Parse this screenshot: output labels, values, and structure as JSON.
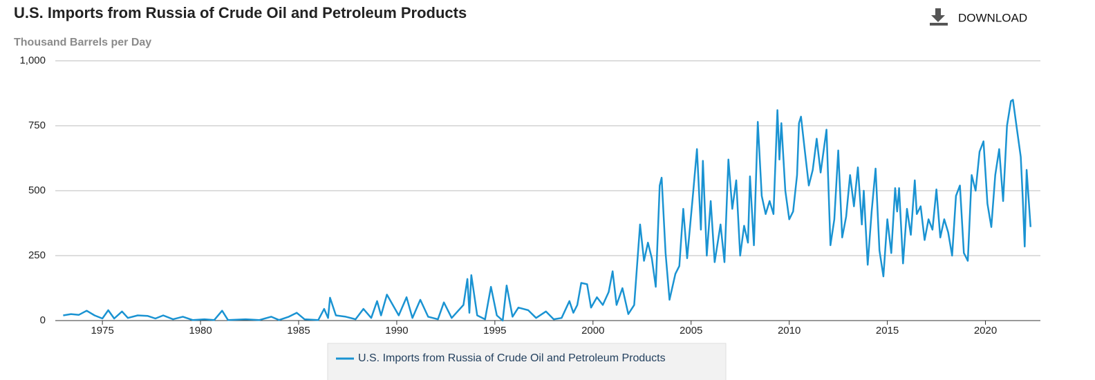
{
  "toolbar": {
    "download": "DOWNLOAD"
  },
  "chart_data": {
    "type": "line",
    "title": "U.S. Imports from Russia of Crude Oil and Petroleum Products",
    "y_label": "Thousand Barrels per Day",
    "xlim": [
      1972.6,
      2022.8
    ],
    "xticks": [
      1975,
      1980,
      1985,
      1990,
      1995,
      2000,
      2005,
      2010,
      2015,
      2020
    ],
    "ylim": [
      0,
      1000
    ],
    "yticks": [
      0,
      250,
      500,
      750,
      {
        "value": 1000,
        "label": "1,000"
      }
    ],
    "grid": true,
    "legend": "bottom",
    "x": [
      1973.0,
      1973.4,
      1973.8,
      1974.2,
      1974.6,
      1975.0,
      1975.3,
      1975.6,
      1976.0,
      1976.3,
      1976.8,
      1977.3,
      1977.7,
      1978.1,
      1978.6,
      1979.1,
      1979.6,
      1980.2,
      1980.7,
      1981.1,
      1981.4,
      1982.3,
      1983.0,
      1983.6,
      1984.0,
      1984.5,
      1984.9,
      1985.3,
      1986.0,
      1986.3,
      1986.5,
      1986.6,
      1986.9,
      1987.4,
      1987.9,
      1988.3,
      1988.7,
      1989.0,
      1989.2,
      1989.5,
      1989.8,
      1990.1,
      1990.5,
      1990.8,
      1991.2,
      1991.6,
      1992.1,
      1992.4,
      1992.8,
      1993.4,
      1993.6,
      1993.7,
      1993.8,
      1994.1,
      1994.5,
      1994.8,
      1995.1,
      1995.4,
      1995.6,
      1995.9,
      1996.2,
      1996.7,
      1997.1,
      1997.6,
      1998.0,
      1998.4,
      1998.8,
      1999.0,
      1999.2,
      1999.4,
      1999.7,
      1999.9,
      2000.2,
      2000.5,
      2000.8,
      2001.0,
      2001.2,
      2001.5,
      2001.8,
      2002.1,
      2002.4,
      2002.6,
      2002.8,
      2003.0,
      2003.2,
      2003.4,
      2003.5,
      2003.7,
      2003.9,
      2004.2,
      2004.4,
      2004.6,
      2004.8,
      2005.1,
      2005.3,
      2005.5,
      2005.6,
      2005.8,
      2006.0,
      2006.2,
      2006.5,
      2006.7,
      2006.9,
      2007.1,
      2007.3,
      2007.5,
      2007.7,
      2007.9,
      2008.0,
      2008.2,
      2008.4,
      2008.6,
      2008.8,
      2009.0,
      2009.2,
      2009.4,
      2009.5,
      2009.6,
      2009.8,
      2010.0,
      2010.2,
      2010.4,
      2010.5,
      2010.6,
      2010.8,
      2011.0,
      2011.2,
      2011.4,
      2011.6,
      2011.9,
      2012.1,
      2012.3,
      2012.5,
      2012.7,
      2012.9,
      2013.1,
      2013.3,
      2013.5,
      2013.7,
      2013.8,
      2014.0,
      2014.2,
      2014.4,
      2014.6,
      2014.8,
      2015.0,
      2015.2,
      2015.4,
      2015.5,
      2015.6,
      2015.8,
      2016.0,
      2016.2,
      2016.4,
      2016.5,
      2016.7,
      2016.9,
      2017.1,
      2017.3,
      2017.5,
      2017.7,
      2017.9,
      2018.1,
      2018.3,
      2018.5,
      2018.7,
      2018.9,
      2019.1,
      2019.3,
      2019.5,
      2019.7,
      2019.9,
      2020.1,
      2020.3,
      2020.5,
      2020.7,
      2020.9,
      2021.1,
      2021.3,
      2021.4,
      2021.6,
      2021.8,
      2021.9,
      2022.0,
      2022.1,
      2022.3
    ],
    "series": [
      {
        "name": "U.S. Imports from Russia of Crude Oil and Petroleum Products",
        "color": "#1a93d2",
        "values": [
          20,
          25,
          22,
          38,
          20,
          8,
          40,
          8,
          35,
          10,
          20,
          18,
          8,
          20,
          5,
          15,
          2,
          5,
          2,
          38,
          2,
          5,
          2,
          15,
          2,
          15,
          30,
          5,
          2,
          45,
          10,
          88,
          20,
          15,
          5,
          45,
          10,
          75,
          20,
          100,
          60,
          20,
          90,
          10,
          80,
          15,
          5,
          70,
          10,
          60,
          160,
          30,
          175,
          20,
          5,
          130,
          20,
          0,
          135,
          15,
          50,
          40,
          10,
          35,
          5,
          10,
          75,
          30,
          60,
          145,
          140,
          50,
          90,
          60,
          110,
          190,
          60,
          125,
          25,
          60,
          370,
          230,
          300,
          240,
          130,
          520,
          550,
          260,
          80,
          180,
          210,
          430,
          240,
          490,
          660,
          350,
          615,
          250,
          460,
          225,
          370,
          225,
          620,
          430,
          540,
          250,
          365,
          300,
          555,
          290,
          765,
          480,
          410,
          460,
          410,
          810,
          620,
          760,
          500,
          390,
          420,
          560,
          760,
          785,
          650,
          520,
          580,
          700,
          570,
          735,
          290,
          390,
          655,
          320,
          400,
          560,
          440,
          590,
          370,
          500,
          215,
          420,
          585,
          270,
          170,
          390,
          260,
          510,
          420,
          510,
          220,
          430,
          330,
          540,
          410,
          440,
          310,
          390,
          350,
          505,
          320,
          390,
          340,
          250,
          480,
          520,
          260,
          230,
          560,
          500,
          650,
          690,
          450,
          360,
          560,
          660,
          460,
          750,
          845,
          850,
          740,
          630,
          470,
          285,
          580,
          360
        ]
      }
    ]
  }
}
